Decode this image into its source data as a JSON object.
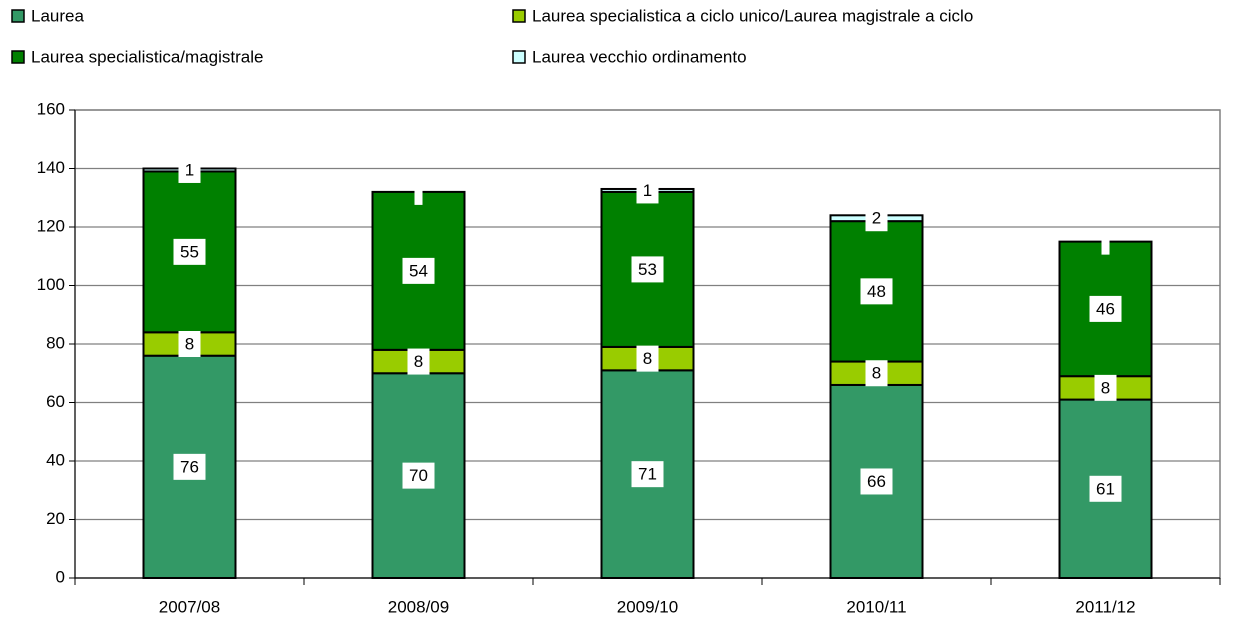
{
  "chart_data": {
    "type": "bar",
    "stacked": true,
    "categories": [
      "2007/08",
      "2008/09",
      "2009/10",
      "2010/11",
      "2011/12"
    ],
    "series": [
      {
        "name": "Laurea",
        "color": "#339966",
        "values": [
          76,
          70,
          71,
          66,
          61
        ]
      },
      {
        "name": "Laurea specialistica a ciclo unico/Laurea magistrale a ciclo",
        "color": "#99cc00",
        "values": [
          8,
          8,
          8,
          8,
          8
        ]
      },
      {
        "name": "Laurea specialistica/magistrale",
        "color": "#008000",
        "values": [
          55,
          54,
          53,
          48,
          46
        ]
      },
      {
        "name": "Laurea vecchio ordinamento",
        "color": "#ccffff",
        "values": [
          1,
          0,
          1,
          2,
          0
        ]
      }
    ],
    "ylim": [
      0,
      160
    ],
    "yticks": [
      0,
      20,
      40,
      60,
      80,
      100,
      120,
      140,
      160
    ],
    "grid": true
  }
}
